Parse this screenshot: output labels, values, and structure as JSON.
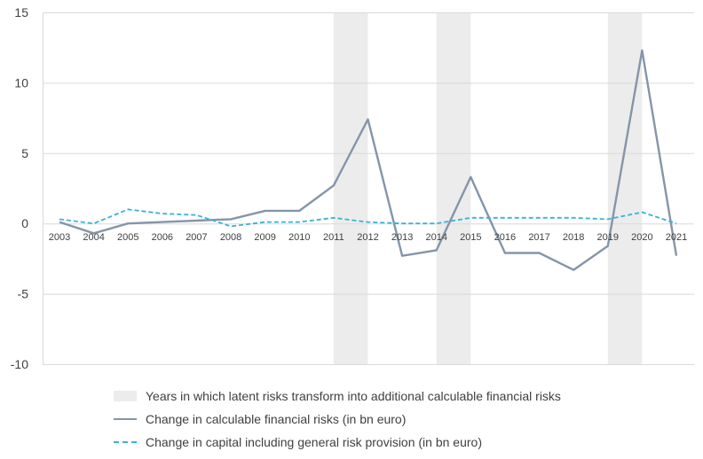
{
  "chart_data": {
    "type": "line",
    "x": [
      "2003",
      "2004",
      "2005",
      "2006",
      "2007",
      "2008",
      "2009",
      "2010",
      "2011",
      "2012",
      "2013",
      "2014",
      "2015",
      "2016",
      "2017",
      "2018",
      "2019",
      "2020",
      "2021"
    ],
    "ylim": [
      -10,
      15
    ],
    "yticks": [
      15,
      10,
      5,
      0,
      -5,
      -10
    ],
    "grid": true,
    "legend_position": "bottom",
    "shaded_ranges": [
      {
        "name": "Years in which latent risks transform into additional calculable financial risks",
        "years": [
          "2011",
          "2012"
        ]
      },
      {
        "name": "Years in which latent risks transform into additional calculable financial risks",
        "years": [
          "2014",
          "2015"
        ]
      },
      {
        "name": "Years in which latent risks transform into additional calculable financial risks",
        "years": [
          "2019",
          "2020"
        ]
      }
    ],
    "series": [
      {
        "name": "Change in calculable financial risks (in bn euro)",
        "style": "solid",
        "color": "#8595a8",
        "values": [
          0.1,
          -0.7,
          0.0,
          0.1,
          0.2,
          0.3,
          0.9,
          0.9,
          2.7,
          7.4,
          -2.3,
          -1.9,
          3.3,
          -2.1,
          -2.1,
          -3.3,
          -1.6,
          12.3,
          -2.3
        ]
      },
      {
        "name": "Change in capital including general risk provision (in bn euro)",
        "style": "dashed",
        "color": "#3ab1d8",
        "values": [
          0.3,
          0.0,
          1.0,
          0.7,
          0.6,
          -0.2,
          0.1,
          0.1,
          0.4,
          0.1,
          0.0,
          0.0,
          0.4,
          0.4,
          0.4,
          0.4,
          0.3,
          0.8,
          0.0
        ]
      }
    ],
    "band_color": "#ececec",
    "grid_color": "#d9d9d9"
  },
  "legend": {
    "band": "Years in which latent risks transform into additional calculable financial risks",
    "solid": "Change in calculable financial risks (in bn euro)",
    "dashed": "Change in capital including general risk provision (in bn euro)"
  }
}
